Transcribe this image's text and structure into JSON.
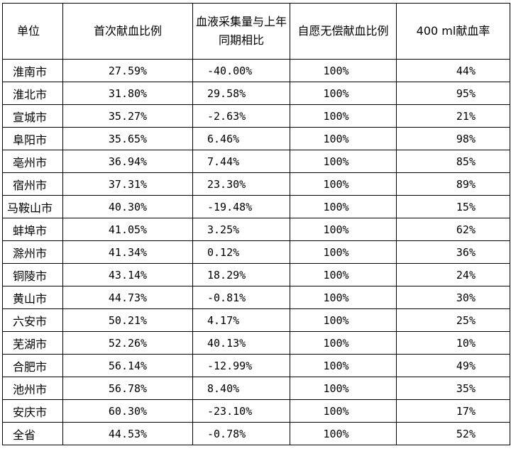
{
  "table": {
    "headers": [
      "单位",
      "首次献血比例",
      "血液采集量与上年同期相比",
      "自愿无偿献血比例",
      "400 ml献血率"
    ],
    "rows": [
      [
        "淮南市",
        "27.59%",
        "-40.00%",
        "100%",
        "44%"
      ],
      [
        "淮北市",
        "31.80%",
        "29.58%",
        "100%",
        "95%"
      ],
      [
        "宣城市",
        "35.27%",
        "-2.63%",
        "100%",
        "21%"
      ],
      [
        "阜阳市",
        "35.65%",
        "6.46%",
        "100%",
        "98%"
      ],
      [
        "亳州市",
        "36.94%",
        "7.44%",
        "100%",
        "85%"
      ],
      [
        "宿州市",
        "37.31%",
        "23.30%",
        "100%",
        "89%"
      ],
      [
        "马鞍山市",
        "40.30%",
        "-19.48%",
        "100%",
        "15%"
      ],
      [
        "蚌埠市",
        "41.05%",
        "3.25%",
        "100%",
        "62%"
      ],
      [
        "滁州市",
        "41.34%",
        "0.12%",
        "100%",
        "36%"
      ],
      [
        "铜陵市",
        "43.14%",
        "18.29%",
        "100%",
        "24%"
      ],
      [
        "黄山市",
        "44.73%",
        "-0.81%",
        "100%",
        "30%"
      ],
      [
        "六安市",
        "50.21%",
        "4.17%",
        "100%",
        "25%"
      ],
      [
        "芜湖市",
        "52.26%",
        "40.13%",
        "100%",
        "10%"
      ],
      [
        "合肥市",
        "56.14%",
        "-12.99%",
        "100%",
        "49%"
      ],
      [
        "池州市",
        "56.78%",
        "8.40%",
        "100%",
        "35%"
      ],
      [
        "安庆市",
        "60.30%",
        "-23.10%",
        "100%",
        "17%"
      ],
      [
        "全省",
        "44.53%",
        "-0.78%",
        "100%",
        "52%"
      ]
    ]
  }
}
